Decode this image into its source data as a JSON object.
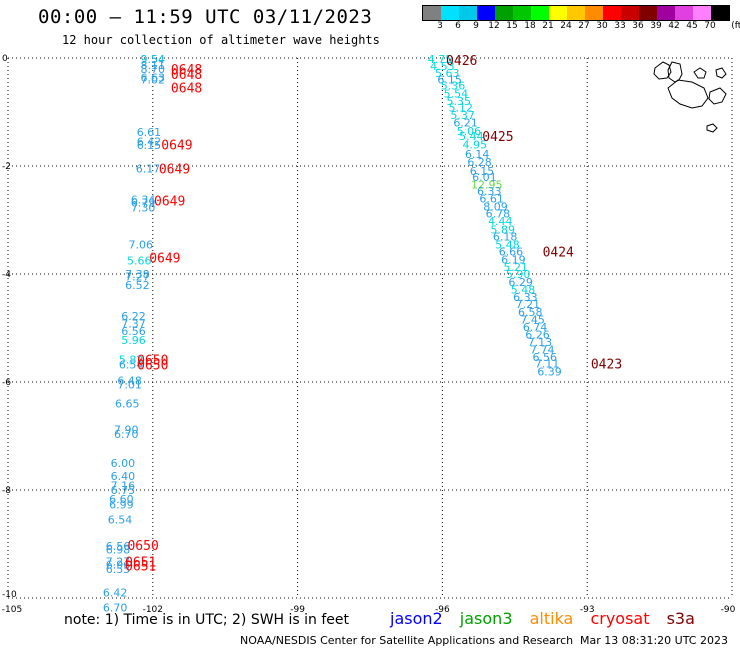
{
  "header": {
    "title": "00:00 – 11:59 UTC 03/11/2023",
    "subtitle": "12 hour collection of altimeter wave heights"
  },
  "colorbar": {
    "unit": "(ft)",
    "swatches": [
      {
        "label": "3",
        "color": "#808080"
      },
      {
        "label": "6",
        "color": "#00e0ff"
      },
      {
        "label": "9",
        "color": "#00c8e8"
      },
      {
        "label": "12",
        "color": "#0000ff"
      },
      {
        "label": "15",
        "color": "#00a000"
      },
      {
        "label": "18",
        "color": "#00c800"
      },
      {
        "label": "21",
        "color": "#00ff00"
      },
      {
        "label": "24",
        "color": "#ffff00"
      },
      {
        "label": "27",
        "color": "#ffc800"
      },
      {
        "label": "30",
        "color": "#ff8c00"
      },
      {
        "label": "33",
        "color": "#ff0000"
      },
      {
        "label": "36",
        "color": "#c80000"
      },
      {
        "label": "39",
        "color": "#800000"
      },
      {
        "label": "42",
        "color": "#a000a0"
      },
      {
        "label": "45",
        "color": "#e040e0"
      },
      {
        "label": "70",
        "color": "#ff80ff"
      },
      {
        "label": "",
        "color": "#000000"
      }
    ]
  },
  "footer": {
    "note": "note:  1) Time is in UTC; 2) SWH is in feet",
    "satellites": [
      {
        "name": "jason2",
        "color": "#0000ff"
      },
      {
        "name": "jason3",
        "color": "#00a000"
      },
      {
        "name": "altika",
        "color": "#ff8c00"
      },
      {
        "name": "cryosat",
        "color": "#ff0000"
      },
      {
        "name": "s3a",
        "color": "#800000"
      }
    ],
    "credit": "NOAA/NESDIS Center for Satellite Applications and Research",
    "timestamp": "Mar 13 08:31:20 UTC 2023"
  },
  "chart_data": {
    "type": "scatter",
    "title": "00:00 – 11:59 UTC 03/11/2023",
    "subtitle": "12 hour collection of altimeter wave heights",
    "xlim": [
      -105,
      -90
    ],
    "ylim": [
      -10,
      0
    ],
    "xticks": [
      -105,
      -102,
      -99,
      -96,
      -93,
      -90
    ],
    "yticks": [
      0,
      -2,
      -4,
      -6,
      -8,
      -10
    ],
    "xtick_labels": [
      "-105",
      "-102",
      "-99",
      "-96",
      "-93",
      "-90"
    ],
    "ytick_labels": [
      "0",
      "-2",
      "-4",
      "-6",
      "-8",
      "-10"
    ],
    "grid": true,
    "series": [
      {
        "name": "track1",
        "color": "#2aa0e8",
        "points": [
          {
            "lon": -102.0,
            "lat": -0.02,
            "v": "9.54"
          },
          {
            "lon": -102.0,
            "lat": -0.13,
            "v": "8.11"
          },
          {
            "lon": -102.0,
            "lat": -0.2,
            "v": "8.70"
          },
          {
            "lon": -102.0,
            "lat": -0.36,
            "v": "6.63"
          },
          {
            "lon": -102.0,
            "lat": -0.4,
            "v": "7.02"
          },
          {
            "lon": -102.08,
            "lat": -1.37,
            "v": "6.61"
          },
          {
            "lon": -102.08,
            "lat": -1.55,
            "v": "6.42"
          },
          {
            "lon": -102.08,
            "lat": -1.61,
            "v": "6.15"
          },
          {
            "lon": -102.1,
            "lat": -2.05,
            "v": "6.17"
          },
          {
            "lon": -102.2,
            "lat": -2.62,
            "v": "6.34"
          },
          {
            "lon": -102.2,
            "lat": -2.68,
            "v": "6.79"
          },
          {
            "lon": -102.2,
            "lat": -2.77,
            "v": "7.30"
          },
          {
            "lon": -102.25,
            "lat": -3.45,
            "v": "7.06"
          },
          {
            "lon": -102.28,
            "lat": -3.75,
            "v": "5.66"
          },
          {
            "lon": -102.32,
            "lat": -4.0,
            "v": "7.38"
          },
          {
            "lon": -102.32,
            "lat": -4.05,
            "v": "7.27"
          },
          {
            "lon": -102.32,
            "lat": -4.2,
            "v": "6.52"
          },
          {
            "lon": -102.4,
            "lat": -4.78,
            "v": "6.22"
          },
          {
            "lon": -102.4,
            "lat": -4.92,
            "v": "7.37"
          },
          {
            "lon": -102.4,
            "lat": -5.06,
            "v": "6.56"
          },
          {
            "lon": -102.4,
            "lat": -5.22,
            "v": "5.96"
          },
          {
            "lon": -102.45,
            "lat": -5.58,
            "v": "5.82"
          },
          {
            "lon": -102.45,
            "lat": -5.68,
            "v": "6.54"
          },
          {
            "lon": -102.48,
            "lat": -5.97,
            "v": "6.48"
          },
          {
            "lon": -102.48,
            "lat": -6.05,
            "v": "7.01"
          },
          {
            "lon": -102.53,
            "lat": -6.4,
            "v": "6.65"
          },
          {
            "lon": -102.55,
            "lat": -6.88,
            "v": "7.90"
          },
          {
            "lon": -102.55,
            "lat": -6.96,
            "v": "6.70"
          },
          {
            "lon": -102.62,
            "lat": -7.5,
            "v": "6.00"
          },
          {
            "lon": -102.62,
            "lat": -7.74,
            "v": "6.40"
          },
          {
            "lon": -102.62,
            "lat": -7.92,
            "v": "7.16"
          },
          {
            "lon": -102.62,
            "lat": -8.0,
            "v": "6.75"
          },
          {
            "lon": -102.65,
            "lat": -8.17,
            "v": "6.60"
          },
          {
            "lon": -102.65,
            "lat": -8.27,
            "v": "6.99"
          },
          {
            "lon": -102.68,
            "lat": -8.55,
            "v": "6.54"
          },
          {
            "lon": -102.72,
            "lat": -9.04,
            "v": "6.56"
          },
          {
            "lon": -102.72,
            "lat": -9.1,
            "v": "6.98"
          },
          {
            "lon": -102.72,
            "lat": -9.32,
            "v": "7.27"
          },
          {
            "lon": -102.72,
            "lat": -9.38,
            "v": "6.96"
          },
          {
            "lon": -102.72,
            "lat": -9.46,
            "v": "6.55"
          },
          {
            "lon": -102.78,
            "lat": -9.9,
            "v": "6.42"
          },
          {
            "lon": -102.78,
            "lat": -10.18,
            "v": "6.70"
          }
        ]
      },
      {
        "name": "track2",
        "color": "#2aa0e8",
        "points": [
          {
            "lon": -96.05,
            "lat": -0.02,
            "v": "4.75"
          },
          {
            "lon": -96.0,
            "lat": -0.15,
            "v": "4.53"
          },
          {
            "lon": -95.9,
            "lat": -0.28,
            "v": "5.63"
          },
          {
            "lon": -95.85,
            "lat": -0.4,
            "v": "6.15"
          },
          {
            "lon": -95.78,
            "lat": -0.51,
            "v": "5.36"
          },
          {
            "lon": -95.72,
            "lat": -0.66,
            "v": "5.54"
          },
          {
            "lon": -95.66,
            "lat": -0.8,
            "v": "5.35"
          },
          {
            "lon": -95.62,
            "lat": -0.92,
            "v": "5.12"
          },
          {
            "lon": -95.58,
            "lat": -1.06,
            "v": "5.37"
          },
          {
            "lon": -95.52,
            "lat": -1.19,
            "v": "6.21"
          },
          {
            "lon": -95.45,
            "lat": -1.35,
            "v": "5.06"
          },
          {
            "lon": -95.4,
            "lat": -1.44,
            "v": "5.44"
          },
          {
            "lon": -95.33,
            "lat": -1.6,
            "v": "4.95"
          },
          {
            "lon": -95.28,
            "lat": -1.78,
            "v": "6.14"
          },
          {
            "lon": -95.23,
            "lat": -1.93,
            "v": "6.28"
          },
          {
            "lon": -95.18,
            "lat": -2.09,
            "v": "6.15"
          },
          {
            "lon": -95.13,
            "lat": -2.2,
            "v": "6.01"
          },
          {
            "lon": -95.08,
            "lat": -2.34,
            "v": "12.95"
          },
          {
            "lon": -95.03,
            "lat": -2.46,
            "v": "6.33"
          },
          {
            "lon": -94.98,
            "lat": -2.6,
            "v": "6.61"
          },
          {
            "lon": -94.9,
            "lat": -2.75,
            "v": "8.09"
          },
          {
            "lon": -94.85,
            "lat": -2.88,
            "v": "6.78"
          },
          {
            "lon": -94.8,
            "lat": -3.02,
            "v": "4.44"
          },
          {
            "lon": -94.75,
            "lat": -3.18,
            "v": "5.89"
          },
          {
            "lon": -94.7,
            "lat": -3.31,
            "v": "6.18"
          },
          {
            "lon": -94.65,
            "lat": -3.45,
            "v": "5.48"
          },
          {
            "lon": -94.58,
            "lat": -3.58,
            "v": "6.66"
          },
          {
            "lon": -94.53,
            "lat": -3.73,
            "v": "6.19"
          },
          {
            "lon": -94.48,
            "lat": -3.87,
            "v": "5.21"
          },
          {
            "lon": -94.43,
            "lat": -4.0,
            "v": "5.90"
          },
          {
            "lon": -94.38,
            "lat": -4.15,
            "v": "6.29"
          },
          {
            "lon": -94.33,
            "lat": -4.29,
            "v": "5.48"
          },
          {
            "lon": -94.28,
            "lat": -4.43,
            "v": "6.33"
          },
          {
            "lon": -94.23,
            "lat": -4.56,
            "v": "7.21"
          },
          {
            "lon": -94.18,
            "lat": -4.7,
            "v": "6.58"
          },
          {
            "lon": -94.13,
            "lat": -4.84,
            "v": "7.45"
          },
          {
            "lon": -94.08,
            "lat": -4.98,
            "v": "6.74"
          },
          {
            "lon": -94.03,
            "lat": -5.12,
            "v": "6.26"
          },
          {
            "lon": -93.98,
            "lat": -5.26,
            "v": "7.13"
          },
          {
            "lon": -93.93,
            "lat": -5.4,
            "v": "7.74"
          },
          {
            "lon": -93.88,
            "lat": -5.54,
            "v": "6.56"
          },
          {
            "lon": -93.83,
            "lat": -5.66,
            "v": "7.11"
          },
          {
            "lon": -93.78,
            "lat": -5.81,
            "v": "6.39"
          }
        ]
      }
    ],
    "time_labels": [
      {
        "lon": -101.3,
        "lat": -0.2,
        "text": "0648",
        "color": "#ff0000"
      },
      {
        "lon": -101.3,
        "lat": -0.3,
        "text": "0648",
        "color": "#ff0000"
      },
      {
        "lon": -101.3,
        "lat": -0.55,
        "text": "0648",
        "color": "#ff0000"
      },
      {
        "lon": -101.5,
        "lat": -1.6,
        "text": "0649",
        "color": "#ff0000"
      },
      {
        "lon": -101.55,
        "lat": -2.05,
        "text": "0649",
        "color": "#ff0000"
      },
      {
        "lon": -101.65,
        "lat": -2.64,
        "text": "0649",
        "color": "#ff0000"
      },
      {
        "lon": -101.75,
        "lat": -3.69,
        "text": "0649",
        "color": "#ff0000"
      },
      {
        "lon": -102.0,
        "lat": -5.58,
        "text": "0650",
        "color": "#ff0000"
      },
      {
        "lon": -102.0,
        "lat": -5.68,
        "text": "0650",
        "color": "#ff0000"
      },
      {
        "lon": -102.2,
        "lat": -9.02,
        "text": "0650",
        "color": "#ff0000"
      },
      {
        "lon": -102.25,
        "lat": -9.32,
        "text": "0651",
        "color": "#ff0000"
      },
      {
        "lon": -102.25,
        "lat": -9.4,
        "text": "0651",
        "color": "#ff0000"
      },
      {
        "lon": -95.6,
        "lat": -0.04,
        "text": "0426",
        "color": "#800000"
      },
      {
        "lon": -94.85,
        "lat": -1.44,
        "text": "0425",
        "color": "#800000"
      },
      {
        "lon": -93.6,
        "lat": -3.58,
        "text": "0424",
        "color": "#800000"
      },
      {
        "lon": -92.6,
        "lat": -5.66,
        "text": "0423",
        "color": "#800000"
      }
    ]
  }
}
